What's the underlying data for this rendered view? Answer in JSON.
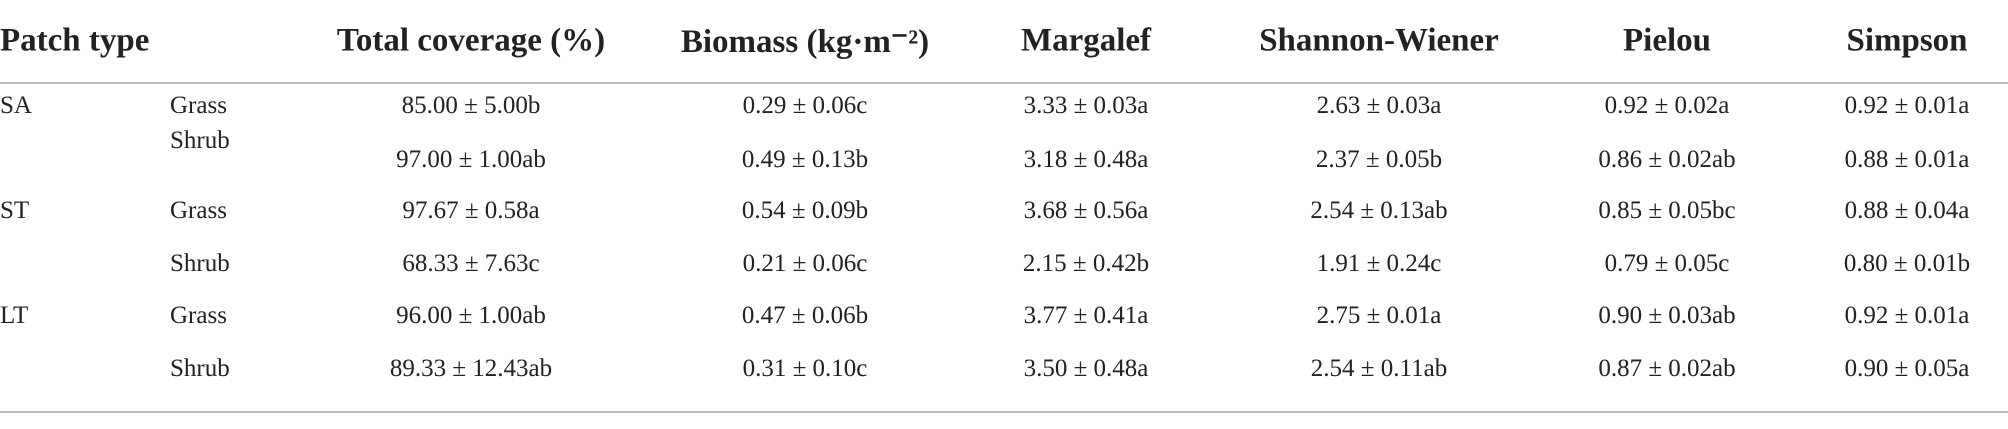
{
  "table": {
    "header": [
      "Patch type",
      "Total coverage (%)",
      "Biomass (kg·m⁻²)",
      "Margalef",
      "Shannon-Wiener",
      "Pielou",
      "Simpson"
    ],
    "rows": [
      [
        "SA",
        "Grass",
        "85.00 ± 5.00b",
        "0.29 ± 0.06c",
        "3.33 ± 0.03a",
        "2.63 ± 0.03a",
        "0.92 ± 0.02a",
        "0.92 ± 0.01a"
      ],
      [
        null,
        "Shrub",
        "97.00 ± 1.00ab",
        "0.49 ± 0.13b",
        "3.18 ± 0.48a",
        "2.37 ± 0.05b",
        "0.86 ± 0.02ab",
        "0.88 ± 0.01a"
      ],
      [
        "ST",
        "Grass",
        "97.67 ± 0.58a",
        "0.54 ± 0.09b",
        "3.68 ± 0.56a",
        "2.54 ± 0.13ab",
        "0.85 ± 0.05bc",
        "0.88 ± 0.04a"
      ],
      [
        null,
        "Shrub",
        "68.33 ± 7.63c",
        "0.21 ± 0.06c",
        "2.15 ± 0.42b",
        "1.91 ± 0.24c",
        "0.79 ± 0.05c",
        "0.80 ± 0.01b"
      ],
      [
        "LT",
        "Grass",
        "96.00 ± 1.00ab",
        "0.47 ± 0.06b",
        "3.77 ± 0.41a",
        "2.75 ± 0.01a",
        "0.90 ± 0.03ab",
        "0.92 ± 0.01a"
      ],
      [
        null,
        "Shrub",
        "89.33 ± 12.43ab",
        "0.31 ± 0.10c",
        "3.50 ± 0.48a",
        "2.54 ± 0.11ab",
        "0.87 ± 0.02ab",
        "0.90 ± 0.05a"
      ]
    ]
  }
}
